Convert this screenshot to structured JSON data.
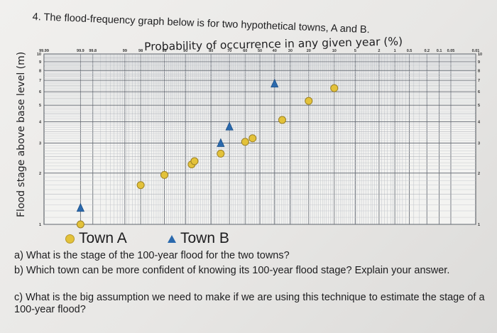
{
  "question": {
    "title": "4. The flood-frequency graph below is for two hypothetical towns, A and B."
  },
  "chart_data": {
    "type": "scatter",
    "title": "Probability of occurrence in any given year (%)",
    "xlabel": "Probability of occurrence in any given year (%)",
    "ylabel": "Flood stage above base level (m)",
    "x_scale": "probability",
    "x_ticks": [
      "99.99",
      "99.9",
      "99.8",
      "99",
      "98",
      "95",
      "90",
      "80",
      "70",
      "60",
      "50",
      "40",
      "30",
      "20",
      "10",
      "5",
      "2",
      "1",
      "0.5",
      "0.2",
      "0.1",
      "0.05",
      "0.01"
    ],
    "y_scale": "log",
    "y_ticks": [
      "1",
      "2",
      "3",
      "4",
      "5",
      "6",
      "7",
      "8",
      "9",
      "10"
    ],
    "ylim": [
      1,
      10
    ],
    "series": [
      {
        "name": "Town A",
        "marker": "circle",
        "color": "#e3c23a",
        "points": [
          [
            99.9,
            1
          ],
          [
            98,
            1.7
          ],
          [
            95,
            1.95
          ],
          [
            88,
            2.25
          ],
          [
            87,
            2.35
          ],
          [
            75,
            2.6
          ],
          [
            60,
            3.05
          ],
          [
            55,
            3.2
          ],
          [
            35,
            4.1
          ],
          [
            20,
            5.3
          ],
          [
            10,
            6.3
          ]
        ]
      },
      {
        "name": "Town B",
        "marker": "triangle",
        "color": "#2a69ad",
        "points": [
          [
            99.9,
            1.25
          ],
          [
            75,
            3
          ],
          [
            70,
            3.75
          ],
          [
            40,
            6.7
          ]
        ]
      }
    ],
    "grid": true,
    "legend_position": "bottom-left"
  },
  "legend": {
    "town_a": "Town A",
    "town_b": "Town B"
  },
  "questions": {
    "a": "a) What is the stage of the 100-year flood for the two towns?",
    "b": "b) Which town can be more confident of knowing its 100-year flood stage? Explain your answer.",
    "c": "c) What is the big assumption we need to make if we are using this technique to estimate the stage of a 100-year flood?"
  }
}
